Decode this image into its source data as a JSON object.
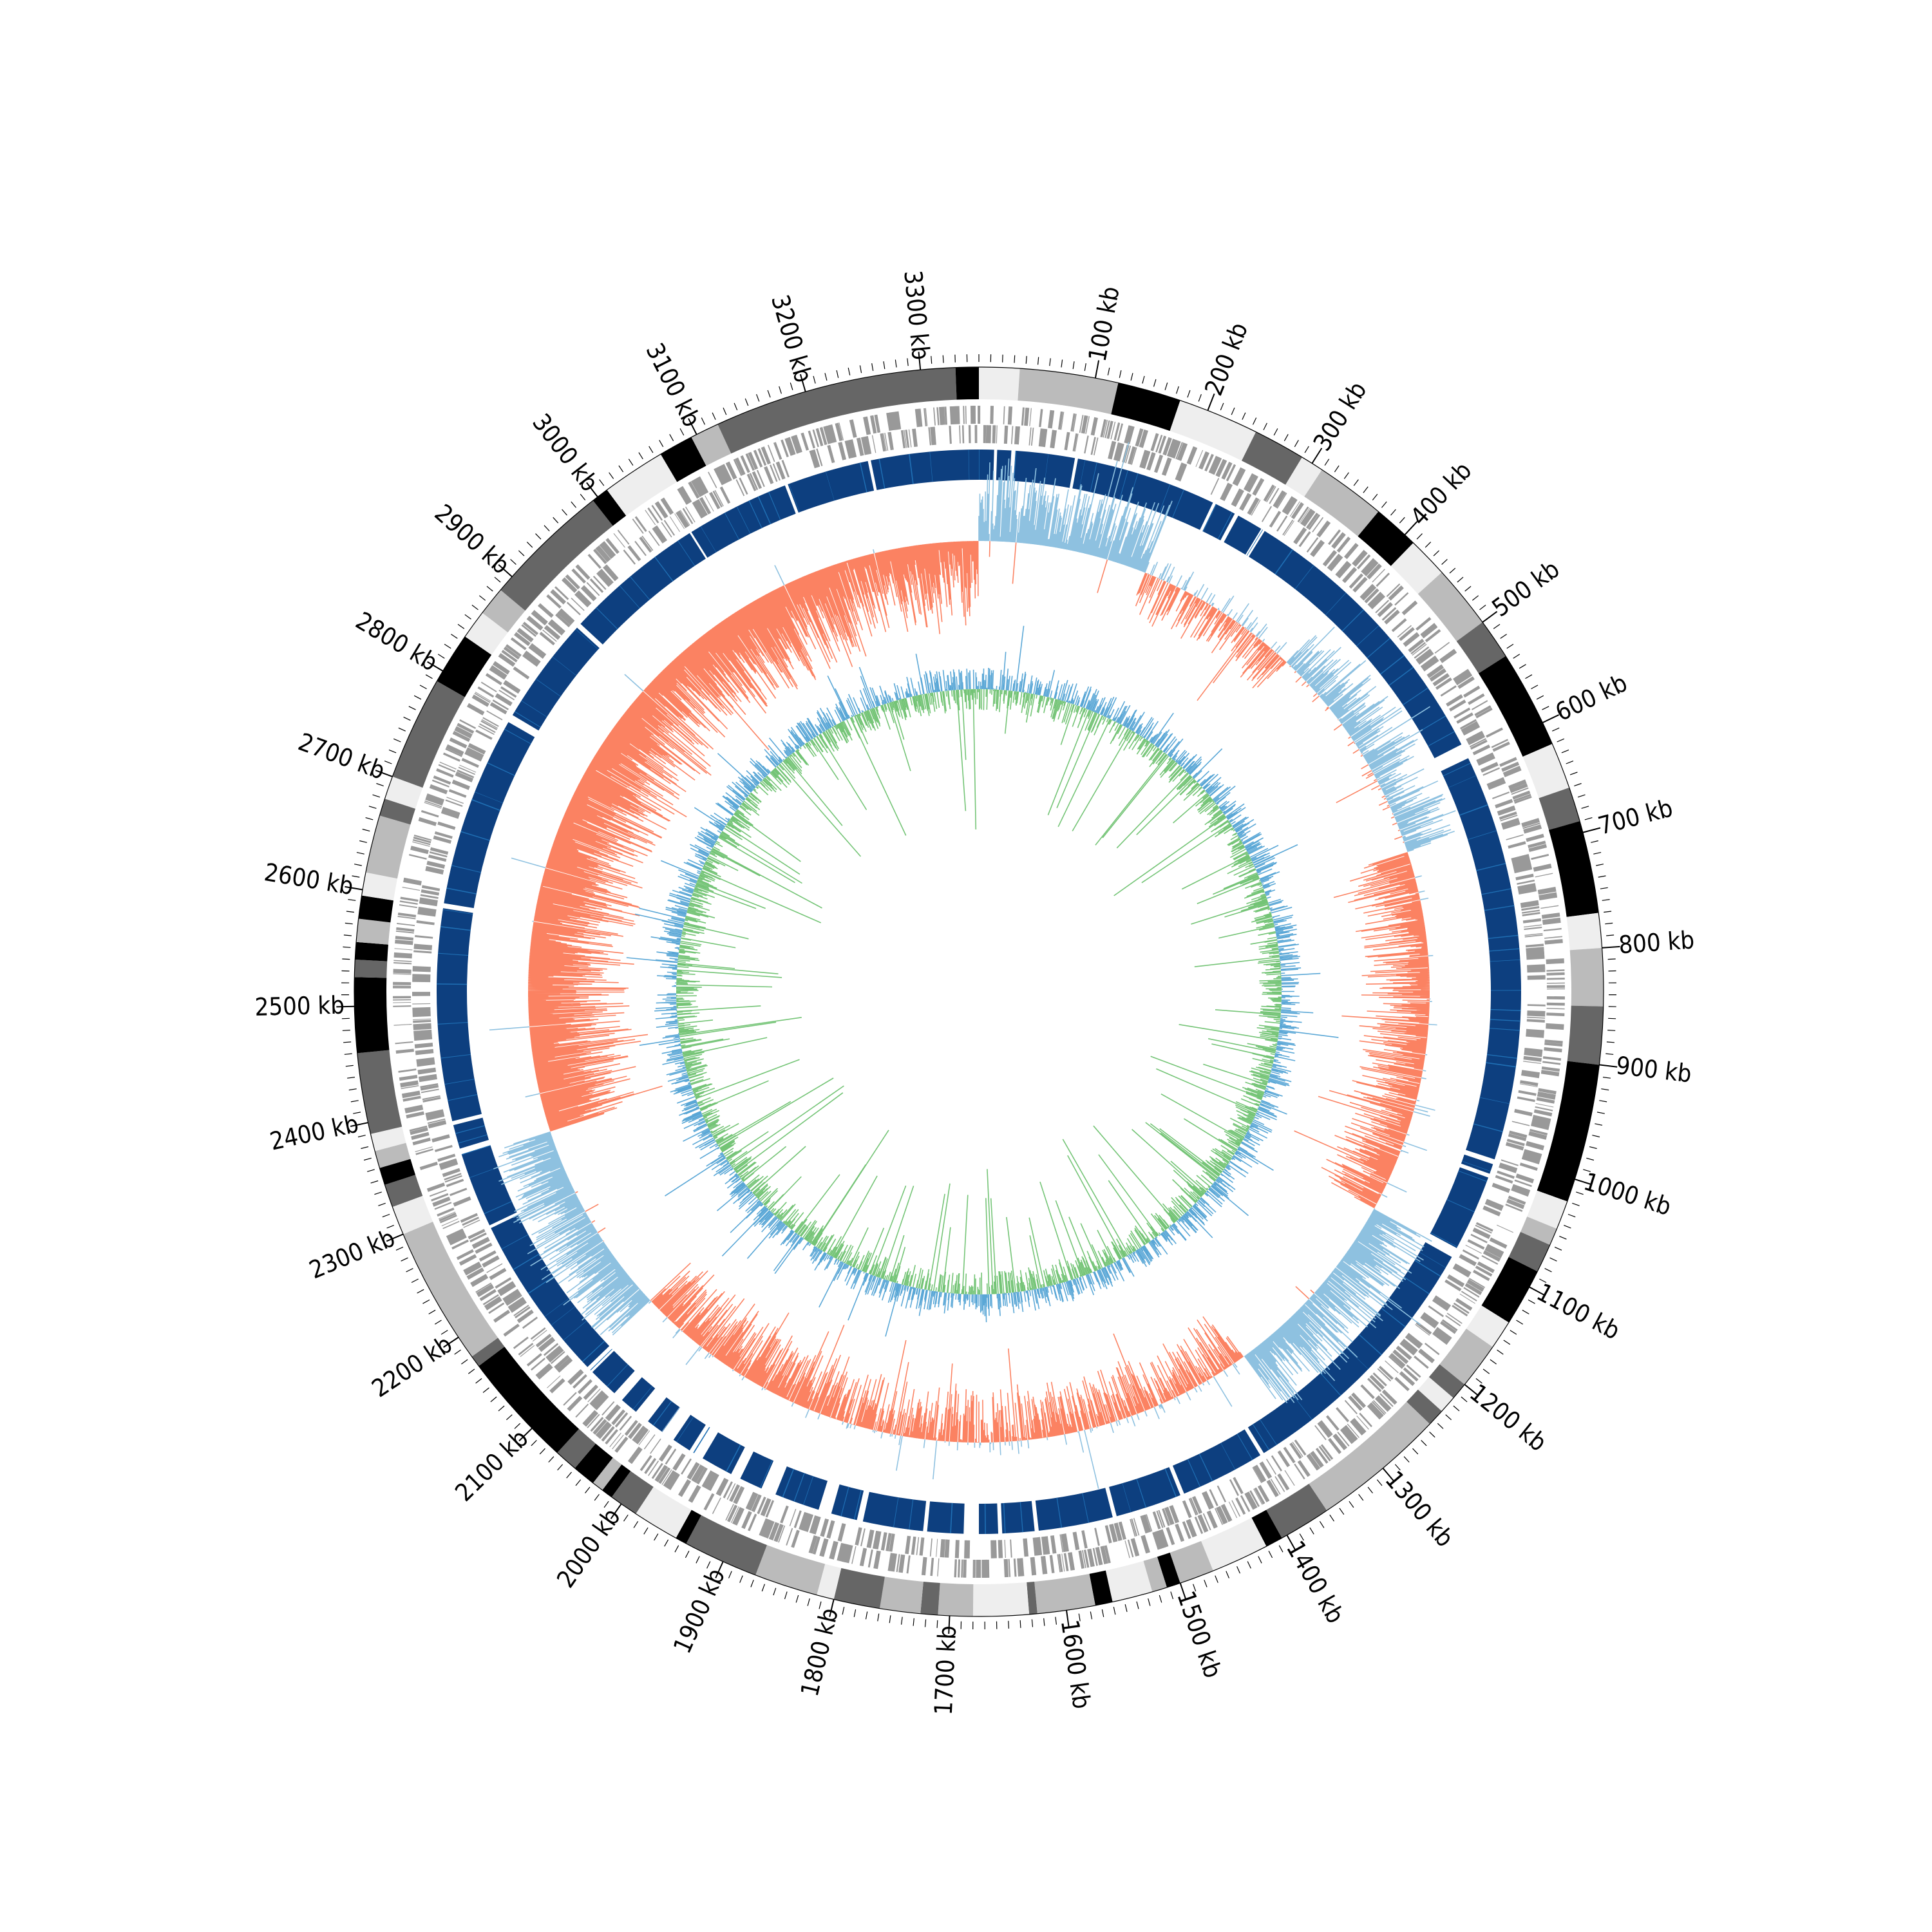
{
  "chart_data": {
    "type": "circular_genome_map",
    "genome_size_kb": 3350,
    "axis": {
      "unit": "kb",
      "labels": [
        "100 kb",
        "200 kb",
        "300 kb",
        "400 kb",
        "500 kb",
        "600 kb",
        "700 kb",
        "800 kb",
        "900 kb",
        "1000 kb",
        "1100 kb",
        "1200 kb",
        "1300 kb",
        "1400 kb",
        "1500 kb",
        "1600 kb",
        "1700 kb",
        "1800 kb",
        "1900 kb",
        "2000 kb",
        "2100 kb",
        "2200 kb",
        "2300 kb",
        "2400 kb",
        "2500 kb",
        "2600 kb",
        "2700 kb",
        "2800 kb",
        "2900 kb",
        "3000 kb",
        "3100 kb",
        "3200 kb",
        "3300 kb"
      ],
      "major_tick_kb": 100,
      "minor_tick_kb": 10
    },
    "contigs": [
      {
        "start": 0,
        "end": 35,
        "color": "#eeeeee"
      },
      {
        "start": 35,
        "end": 120,
        "color": "#bbbbbb"
      },
      {
        "start": 120,
        "end": 175,
        "color": "#000000"
      },
      {
        "start": 175,
        "end": 245,
        "color": "#eeeeee"
      },
      {
        "start": 245,
        "end": 290,
        "color": "#666666"
      },
      {
        "start": 290,
        "end": 310,
        "color": "#eeeeee"
      },
      {
        "start": 310,
        "end": 370,
        "color": "#bbbbbb"
      },
      {
        "start": 370,
        "end": 410,
        "color": "#000000"
      },
      {
        "start": 410,
        "end": 445,
        "color": "#eeeeee"
      },
      {
        "start": 445,
        "end": 500,
        "color": "#bbbbbb"
      },
      {
        "start": 500,
        "end": 535,
        "color": "#666666"
      },
      {
        "start": 535,
        "end": 620,
        "color": "#000000"
      },
      {
        "start": 620,
        "end": 660,
        "color": "#eeeeee"
      },
      {
        "start": 660,
        "end": 690,
        "color": "#666666"
      },
      {
        "start": 690,
        "end": 770,
        "color": "#000000"
      },
      {
        "start": 770,
        "end": 800,
        "color": "#eeeeee"
      },
      {
        "start": 800,
        "end": 850,
        "color": "#bbbbbb"
      },
      {
        "start": 850,
        "end": 900,
        "color": "#666666"
      },
      {
        "start": 900,
        "end": 1020,
        "color": "#000000"
      },
      {
        "start": 1020,
        "end": 1045,
        "color": "#eeeeee"
      },
      {
        "start": 1045,
        "end": 1060,
        "color": "#bbbbbb"
      },
      {
        "start": 1060,
        "end": 1085,
        "color": "#666666"
      },
      {
        "start": 1085,
        "end": 1135,
        "color": "#000000"
      },
      {
        "start": 1135,
        "end": 1160,
        "color": "#eeeeee"
      },
      {
        "start": 1160,
        "end": 1200,
        "color": "#bbbbbb"
      },
      {
        "start": 1200,
        "end": 1215,
        "color": "#666666"
      },
      {
        "start": 1215,
        "end": 1230,
        "color": "#eeeeee"
      },
      {
        "start": 1230,
        "end": 1245,
        "color": "#666666"
      },
      {
        "start": 1245,
        "end": 1360,
        "color": "#bbbbbb"
      },
      {
        "start": 1360,
        "end": 1405,
        "color": "#666666"
      },
      {
        "start": 1405,
        "end": 1420,
        "color": "#000000"
      },
      {
        "start": 1420,
        "end": 1470,
        "color": "#eeeeee"
      },
      {
        "start": 1470,
        "end": 1500,
        "color": "#bbbbbb"
      },
      {
        "start": 1500,
        "end": 1512,
        "color": "#000000"
      },
      {
        "start": 1512,
        "end": 1525,
        "color": "#bbbbbb"
      },
      {
        "start": 1525,
        "end": 1560,
        "color": "#eeeeee"
      },
      {
        "start": 1560,
        "end": 1575,
        "color": "#000000"
      },
      {
        "start": 1575,
        "end": 1625,
        "color": "#bbbbbb"
      },
      {
        "start": 1625,
        "end": 1632,
        "color": "#666666"
      },
      {
        "start": 1632,
        "end": 1680,
        "color": "#eeeeee"
      },
      {
        "start": 1680,
        "end": 1710,
        "color": "#bbbbbb"
      },
      {
        "start": 1710,
        "end": 1725,
        "color": "#666666"
      },
      {
        "start": 1725,
        "end": 1760,
        "color": "#bbbbbb"
      },
      {
        "start": 1760,
        "end": 1800,
        "color": "#666666"
      },
      {
        "start": 1800,
        "end": 1815,
        "color": "#eeeeee"
      },
      {
        "start": 1815,
        "end": 1870,
        "color": "#bbbbbb"
      },
      {
        "start": 1870,
        "end": 1935,
        "color": "#666666"
      },
      {
        "start": 1935,
        "end": 1945,
        "color": "#000000"
      },
      {
        "start": 1945,
        "end": 1985,
        "color": "#eeeeee"
      },
      {
        "start": 1985,
        "end": 2010,
        "color": "#666666"
      },
      {
        "start": 2010,
        "end": 2020,
        "color": "#000000"
      },
      {
        "start": 2020,
        "end": 2030,
        "color": "#bbbbbb"
      },
      {
        "start": 2030,
        "end": 2050,
        "color": "#000000"
      },
      {
        "start": 2050,
        "end": 2070,
        "color": "#666666"
      },
      {
        "start": 2070,
        "end": 2170,
        "color": "#000000"
      },
      {
        "start": 2170,
        "end": 2180,
        "color": "#666666"
      },
      {
        "start": 2180,
        "end": 2300,
        "color": "#bbbbbb"
      },
      {
        "start": 2300,
        "end": 2325,
        "color": "#eeeeee"
      },
      {
        "start": 2325,
        "end": 2345,
        "color": "#666666"
      },
      {
        "start": 2345,
        "end": 2360,
        "color": "#000000"
      },
      {
        "start": 2360,
        "end": 2375,
        "color": "#bbbbbb"
      },
      {
        "start": 2375,
        "end": 2390,
        "color": "#eeeeee"
      },
      {
        "start": 2390,
        "end": 2460,
        "color": "#666666"
      },
      {
        "start": 2460,
        "end": 2525,
        "color": "#000000"
      },
      {
        "start": 2525,
        "end": 2540,
        "color": "#666666"
      },
      {
        "start": 2540,
        "end": 2555,
        "color": "#000000"
      },
      {
        "start": 2555,
        "end": 2575,
        "color": "#bbbbbb"
      },
      {
        "start": 2575,
        "end": 2595,
        "color": "#000000"
      },
      {
        "start": 2595,
        "end": 2615,
        "color": "#eeeeee"
      },
      {
        "start": 2615,
        "end": 2665,
        "color": "#bbbbbb"
      },
      {
        "start": 2665,
        "end": 2680,
        "color": "#666666"
      },
      {
        "start": 2680,
        "end": 2700,
        "color": "#eeeeee"
      },
      {
        "start": 2700,
        "end": 2790,
        "color": "#666666"
      },
      {
        "start": 2790,
        "end": 2835,
        "color": "#000000"
      },
      {
        "start": 2835,
        "end": 2860,
        "color": "#eeeeee"
      },
      {
        "start": 2860,
        "end": 2885,
        "color": "#bbbbbb"
      },
      {
        "start": 2885,
        "end": 2995,
        "color": "#666666"
      },
      {
        "start": 2995,
        "end": 3010,
        "color": "#000000"
      },
      {
        "start": 3010,
        "end": 3065,
        "color": "#eeeeee"
      },
      {
        "start": 3065,
        "end": 3095,
        "color": "#000000"
      },
      {
        "start": 3095,
        "end": 3120,
        "color": "#bbbbbb"
      },
      {
        "start": 3120,
        "end": 3330,
        "color": "#666666"
      },
      {
        "start": 3330,
        "end": 3350,
        "color": "#000000"
      }
    ],
    "gene_track_colors": {
      "outer": "#999999",
      "inner": "#0d3f7f",
      "inner_highlight": "#1f6fb4"
    },
    "gc_skew": {
      "positive_color": "#8ec1e0",
      "negative_color": "#fb8262"
    },
    "gc_content": {
      "above_color": "#5aa7d6",
      "below_color": "#74c476"
    },
    "inner_track_gaps_kb": [
      [
        15,
        18
      ],
      [
        32,
        36
      ],
      [
        95,
        98
      ],
      [
        238,
        241
      ],
      [
        262,
        266
      ],
      [
        292,
        296
      ],
      [
        585,
        600
      ],
      [
        1005,
        1010
      ],
      [
        1020,
        1024
      ],
      [
        1100,
        1110
      ],
      [
        1380,
        1384
      ],
      [
        1468,
        1472
      ],
      [
        1538,
        1542
      ],
      [
        1616,
        1620
      ],
      [
        1652,
        1656
      ],
      [
        1675,
        1690
      ],
      [
        1726,
        1730
      ],
      [
        1790,
        1796
      ],
      [
        1822,
        1835
      ],
      [
        1880,
        1895
      ],
      [
        1918,
        1928
      ],
      [
        1960,
        1975
      ],
      [
        1994,
        2008
      ],
      [
        2025,
        2040
      ],
      [
        2058,
        2068
      ],
      [
        2098,
        2105
      ],
      [
        2272,
        2275
      ],
      [
        2350,
        2356
      ],
      [
        2380,
        2384
      ],
      [
        2595,
        2600
      ],
      [
        2790,
        2798
      ],
      [
        2905,
        2910
      ],
      [
        3050,
        3052
      ],
      [
        3155,
        3158
      ],
      [
        3240,
        3243
      ]
    ]
  }
}
